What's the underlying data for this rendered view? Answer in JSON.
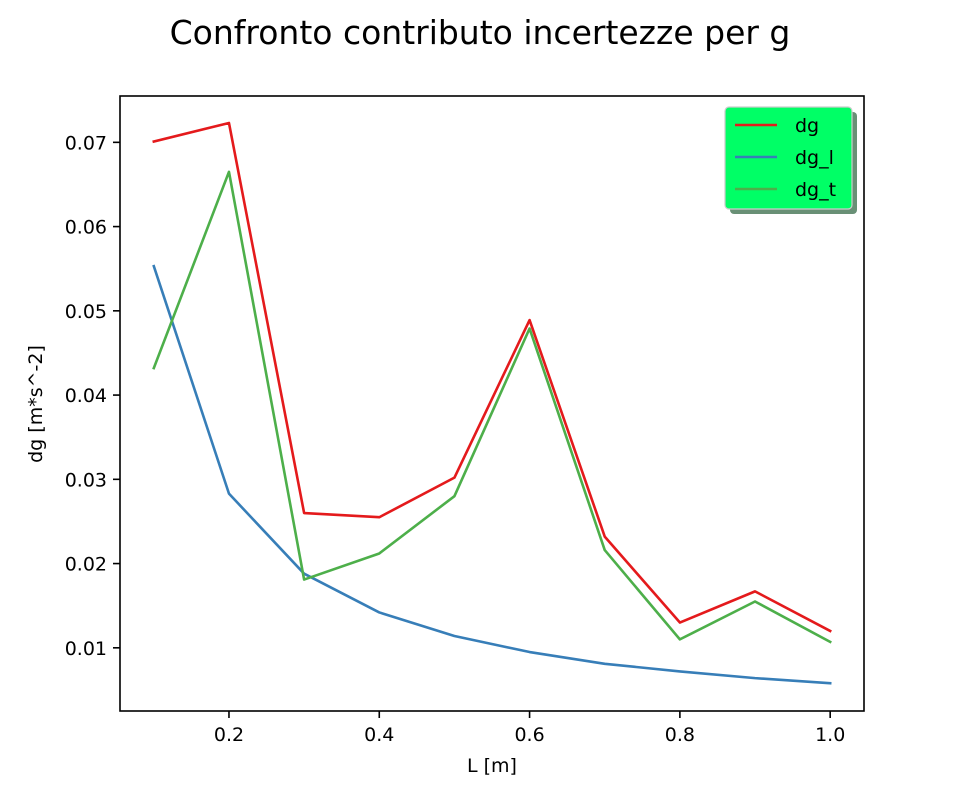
{
  "chart_data": {
    "type": "line",
    "title": "Confronto contributo incertezze per g",
    "xlabel": "L [m]",
    "ylabel": "dg [m*s^-2]",
    "x": [
      0.1,
      0.2,
      0.3,
      0.4,
      0.5,
      0.6,
      0.7,
      0.8,
      0.9,
      1.0
    ],
    "xlim": [
      0.055,
      1.045
    ],
    "ylim": [
      0.0025,
      0.0755
    ],
    "xticks": [
      0.2,
      0.4,
      0.6,
      0.8,
      1.0
    ],
    "xtick_labels": [
      "0.2",
      "0.4",
      "0.6",
      "0.8",
      "1.0"
    ],
    "yticks": [
      0.01,
      0.02,
      0.03,
      0.04,
      0.05,
      0.06,
      0.07
    ],
    "ytick_labels": [
      "0.01",
      "0.02",
      "0.03",
      "0.04",
      "0.05",
      "0.06",
      "0.07"
    ],
    "grid": false,
    "legend": {
      "position": "top-right",
      "background": "#00ff66",
      "shadow": true
    },
    "series": [
      {
        "name": "dg",
        "color": "#e41a1c",
        "values": [
          0.0701,
          0.0723,
          0.026,
          0.0255,
          0.0302,
          0.0489,
          0.0232,
          0.013,
          0.0167,
          0.012
        ]
      },
      {
        "name": "dg_l",
        "color": "#377eb8",
        "values": [
          0.0553,
          0.0283,
          0.0188,
          0.0142,
          0.0114,
          0.0095,
          0.0081,
          0.0072,
          0.0064,
          0.0058
        ]
      },
      {
        "name": "dg_t",
        "color": "#4daf4a",
        "values": [
          0.0432,
          0.0665,
          0.0181,
          0.0212,
          0.028,
          0.0479,
          0.0216,
          0.011,
          0.0155,
          0.0107
        ]
      }
    ]
  }
}
